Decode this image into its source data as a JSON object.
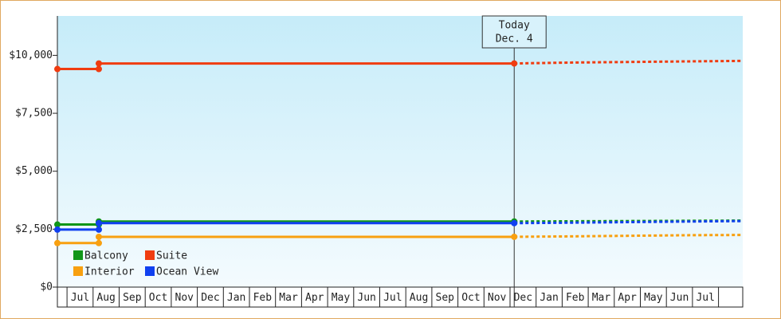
{
  "chart_data": {
    "type": "step-line",
    "xlim": [
      -0.37,
      25.93
    ],
    "ylim": [
      0,
      11700
    ],
    "xticks": [
      {
        "value": 0,
        "label": "Jul"
      },
      {
        "value": 1,
        "label": "Aug"
      },
      {
        "value": 2,
        "label": "Sep"
      },
      {
        "value": 3,
        "label": "Oct"
      },
      {
        "value": 4,
        "label": "Nov"
      },
      {
        "value": 5,
        "label": "Dec"
      },
      {
        "value": 6,
        "label": "Jan"
      },
      {
        "value": 7,
        "label": "Feb"
      },
      {
        "value": 8,
        "label": "Mar"
      },
      {
        "value": 9,
        "label": "Apr"
      },
      {
        "value": 10,
        "label": "May"
      },
      {
        "value": 11,
        "label": "Jun"
      },
      {
        "value": 12,
        "label": "Jul"
      },
      {
        "value": 13,
        "label": "Aug"
      },
      {
        "value": 14,
        "label": "Sep"
      },
      {
        "value": 15,
        "label": "Oct"
      },
      {
        "value": 16,
        "label": "Nov"
      },
      {
        "value": 17,
        "label": "Dec"
      },
      {
        "value": 18,
        "label": "Jan"
      },
      {
        "value": 19,
        "label": "Feb"
      },
      {
        "value": 20,
        "label": "Mar"
      },
      {
        "value": 21,
        "label": "Apr"
      },
      {
        "value": 22,
        "label": "May"
      },
      {
        "value": 23,
        "label": "Jun"
      },
      {
        "value": 24,
        "label": "Jul"
      }
    ],
    "yticks": [
      {
        "value": 0,
        "label": "$0"
      },
      {
        "value": 2500,
        "label": "$2,500"
      },
      {
        "value": 5000,
        "label": "$5,000"
      },
      {
        "value": 7500,
        "label": "$7,500"
      },
      {
        "value": 10000,
        "label": "$10,000"
      }
    ],
    "annotation": {
      "x": 17.16,
      "lines": [
        "Today",
        "Dec. 4"
      ]
    },
    "legend": "bottom-left",
    "series": [
      {
        "name": "Balcony",
        "color": "#109618",
        "x": [
          -0.37,
          1.22,
          1.22,
          17.16
        ],
        "values": [
          2700,
          2700,
          2830,
          2830
        ],
        "forecast": {
          "x": [
            17.16,
            19.4,
            23.9,
            25.93
          ],
          "values": [
            2830,
            2840,
            2860,
            2870
          ]
        }
      },
      {
        "name": "Suite",
        "color": "#f03c10",
        "x": [
          -0.37,
          1.22,
          1.22,
          17.16
        ],
        "values": [
          9410,
          9410,
          9650,
          9650
        ],
        "forecast": {
          "x": [
            17.16,
            19.4,
            23.9,
            25.93
          ],
          "values": [
            9650,
            9690,
            9740,
            9760
          ]
        }
      },
      {
        "name": "Interior",
        "color": "#f8a010",
        "x": [
          -0.37,
          1.22,
          1.22,
          17.16
        ],
        "values": [
          1900,
          1900,
          2170,
          2170
        ],
        "forecast": {
          "x": [
            17.16,
            19.4,
            23.9,
            25.93
          ],
          "values": [
            2170,
            2190,
            2240,
            2250
          ]
        }
      },
      {
        "name": "Ocean View",
        "color": "#1040f0",
        "x": [
          -0.37,
          1.22,
          1.22,
          17.16
        ],
        "values": [
          2480,
          2480,
          2760,
          2760
        ],
        "forecast": {
          "x": [
            17.16,
            19.4,
            23.9,
            25.93
          ],
          "values": [
            2760,
            2780,
            2830,
            2850
          ]
        }
      }
    ]
  }
}
